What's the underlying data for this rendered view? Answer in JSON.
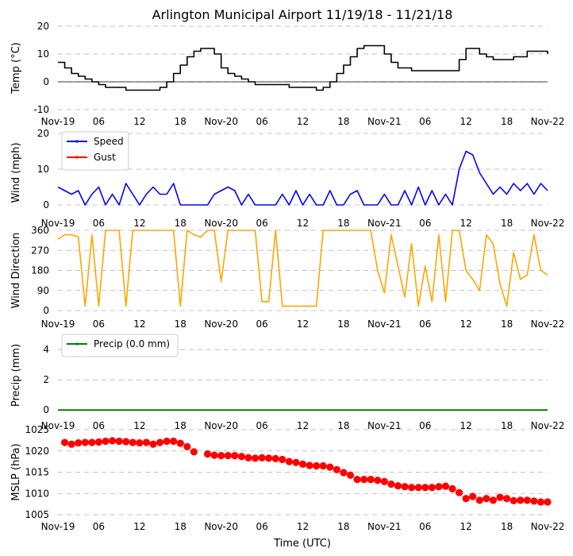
{
  "title": "Arlington Municipal Airport 11/19/18 - 11/21/18",
  "xlabel": "Time (UTC)",
  "x_tick_labels": [
    "Nov-19",
    "06",
    "12",
    "18",
    "Nov-20",
    "06",
    "12",
    "18",
    "Nov-21",
    "06",
    "12",
    "18",
    "Nov-22"
  ],
  "x_range_hours": [
    0,
    72
  ],
  "colors": {
    "temp": "#000000",
    "speed": "#0000ff",
    "gust": "#ff0000",
    "direction": "#ffa500",
    "precip": "#008000",
    "mslp": "#ff0000",
    "grid": "#b0b0b0"
  },
  "chart_data": [
    {
      "type": "line",
      "id": "temp",
      "ylabel": "Temp (°C)",
      "ylim": [
        -10,
        20
      ],
      "yticks": [
        -10,
        0,
        10,
        20
      ],
      "zero_line": true,
      "series": [
        {
          "name": "Temp",
          "x": [
            0,
            1,
            2,
            3,
            4,
            5,
            6,
            7,
            8,
            9,
            10,
            11,
            12,
            13,
            14,
            15,
            16,
            17,
            18,
            19,
            20,
            21,
            22,
            23,
            24,
            25,
            26,
            27,
            28,
            29,
            30,
            31,
            32,
            33,
            34,
            35,
            36,
            37,
            38,
            39,
            40,
            41,
            42,
            43,
            44,
            45,
            46,
            47,
            48,
            49,
            50,
            51,
            52,
            53,
            54,
            55,
            56,
            57,
            58,
            59,
            60,
            61,
            62,
            63,
            64,
            65,
            66,
            67,
            68,
            69,
            70,
            71,
            72
          ],
          "values": [
            7,
            5,
            3,
            2,
            1,
            0,
            -1,
            -2,
            -2,
            -2,
            -3,
            -3,
            -3,
            -3,
            -3,
            -2,
            0,
            3,
            6,
            9,
            11,
            12,
            12,
            10,
            5,
            3,
            2,
            1,
            0,
            -1,
            -1,
            -1,
            -1,
            -1,
            -2,
            -2,
            -2,
            -2,
            -3,
            -2,
            0,
            3,
            6,
            9,
            12,
            13,
            13,
            13,
            10,
            7,
            5,
            5,
            4,
            4,
            4,
            4,
            4,
            4,
            4,
            8,
            12,
            12,
            10,
            9,
            8,
            8,
            8,
            9,
            9,
            11,
            11,
            11,
            10
          ]
        }
      ]
    },
    {
      "type": "line",
      "id": "wind",
      "ylabel": "Wind (mph)",
      "ylim": [
        -2,
        20
      ],
      "yticks": [
        0,
        10,
        20
      ],
      "legend": [
        "Speed",
        "Gust"
      ],
      "series": [
        {
          "name": "Speed",
          "x": [
            0,
            1,
            2,
            3,
            4,
            5,
            6,
            7,
            8,
            9,
            10,
            11,
            12,
            13,
            14,
            15,
            16,
            17,
            18,
            19,
            20,
            21,
            22,
            23,
            24,
            25,
            26,
            27,
            28,
            29,
            30,
            31,
            32,
            33,
            34,
            35,
            36,
            37,
            38,
            39,
            40,
            41,
            42,
            43,
            44,
            45,
            46,
            47,
            48,
            49,
            50,
            51,
            52,
            53,
            54,
            55,
            56,
            57,
            58,
            59,
            60,
            61,
            62,
            63,
            64,
            65,
            66,
            67,
            68,
            69,
            70,
            71,
            72
          ],
          "values": [
            5,
            4,
            3,
            4,
            0,
            3,
            5,
            0,
            3,
            0,
            6,
            3,
            0,
            3,
            5,
            3,
            3,
            6,
            0,
            0,
            0,
            0,
            0,
            3,
            4,
            5,
            4,
            0,
            3,
            0,
            0,
            0,
            0,
            3,
            0,
            4,
            0,
            3,
            0,
            0,
            4,
            0,
            0,
            3,
            4,
            0,
            0,
            0,
            3,
            0,
            0,
            4,
            0,
            5,
            0,
            4,
            0,
            3,
            0,
            10,
            15,
            14,
            9,
            6,
            3,
            5,
            3,
            6,
            4,
            6,
            3,
            6,
            4
          ]
        },
        {
          "name": "Gust",
          "x": [],
          "values": []
        }
      ]
    },
    {
      "type": "line",
      "id": "direction",
      "ylabel": "Wind Direction",
      "ylim": [
        0,
        360
      ],
      "yticks": [
        0,
        90,
        180,
        270,
        360
      ],
      "series": [
        {
          "name": "Direction",
          "x": [
            0,
            1,
            2,
            3,
            4,
            5,
            6,
            7,
            8,
            9,
            10,
            11,
            12,
            13,
            14,
            15,
            16,
            17,
            18,
            19,
            20,
            21,
            22,
            23,
            24,
            25,
            26,
            27,
            28,
            29,
            30,
            31,
            32,
            33,
            34,
            35,
            36,
            37,
            38,
            39,
            40,
            41,
            42,
            43,
            44,
            45,
            46,
            47,
            48,
            49,
            50,
            51,
            52,
            53,
            54,
            55,
            56,
            57,
            58,
            59,
            60,
            61,
            62,
            63,
            64,
            65,
            66,
            67,
            68,
            69,
            70,
            71,
            72
          ],
          "values": [
            320,
            340,
            340,
            330,
            20,
            340,
            20,
            360,
            360,
            360,
            20,
            360,
            360,
            360,
            360,
            360,
            360,
            360,
            20,
            360,
            340,
            330,
            360,
            360,
            130,
            360,
            360,
            360,
            360,
            360,
            40,
            40,
            360,
            20,
            20,
            20,
            20,
            20,
            20,
            360,
            360,
            360,
            360,
            360,
            360,
            360,
            360,
            180,
            80,
            340,
            200,
            60,
            300,
            20,
            200,
            40,
            340,
            40,
            360,
            360,
            180,
            140,
            90,
            340,
            300,
            120,
            20,
            260,
            140,
            160,
            340,
            180,
            160
          ]
        }
      ]
    },
    {
      "type": "line",
      "id": "precip",
      "ylabel": "Precip (mm)",
      "ylim": [
        -0.2,
        4.8
      ],
      "yticks": [
        0,
        2,
        4
      ],
      "legend": [
        "Precip (0.0 mm)"
      ],
      "series": [
        {
          "name": "Precip (0.0 mm)",
          "x": [
            0,
            72
          ],
          "values": [
            0,
            0
          ]
        }
      ]
    },
    {
      "type": "scatter",
      "id": "mslp",
      "ylabel": "MSLP (hPa)",
      "ylim": [
        1005,
        1025
      ],
      "yticks": [
        1005,
        1010,
        1015,
        1020,
        1025
      ],
      "series": [
        {
          "name": "MSLP",
          "x": [
            1,
            2,
            3,
            4,
            5,
            6,
            7,
            8,
            9,
            10,
            11,
            12,
            13,
            14,
            15,
            16,
            17,
            18,
            19,
            20,
            22,
            23,
            24,
            25,
            26,
            27,
            28,
            29,
            30,
            31,
            32,
            33,
            34,
            35,
            36,
            37,
            38,
            39,
            40,
            41,
            42,
            43,
            44,
            45,
            46,
            47,
            48,
            49,
            50,
            51,
            52,
            53,
            54,
            55,
            56,
            57,
            58,
            59,
            60,
            61,
            62,
            63,
            64,
            65,
            66,
            67,
            68,
            69,
            70,
            71,
            72
          ],
          "values": [
            1022,
            1021.6,
            1021.9,
            1022,
            1022,
            1022.1,
            1022.3,
            1022.4,
            1022.3,
            1022.2,
            1022,
            1021.9,
            1022,
            1021.6,
            1022,
            1022.3,
            1022.3,
            1021.8,
            1021,
            1019.8,
            1019.3,
            1019,
            1018.9,
            1018.9,
            1018.9,
            1018.7,
            1018.4,
            1018.3,
            1018.4,
            1018.3,
            1018.2,
            1018,
            1017.5,
            1017.3,
            1016.9,
            1016.6,
            1016.5,
            1016.5,
            1016.2,
            1015.6,
            1014.9,
            1014.3,
            1013.3,
            1013.3,
            1013.3,
            1013.1,
            1012.8,
            1012.2,
            1011.8,
            1011.6,
            1011.4,
            1011.4,
            1011.4,
            1011.4,
            1011.6,
            1011.7,
            1011.1,
            1010.2,
            1008.8,
            1009.3,
            1008.4,
            1008.8,
            1008.4,
            1009.1,
            1008.8,
            1008.3,
            1008.4,
            1008.4,
            1008.2,
            1008,
            1008
          ]
        }
      ]
    }
  ]
}
